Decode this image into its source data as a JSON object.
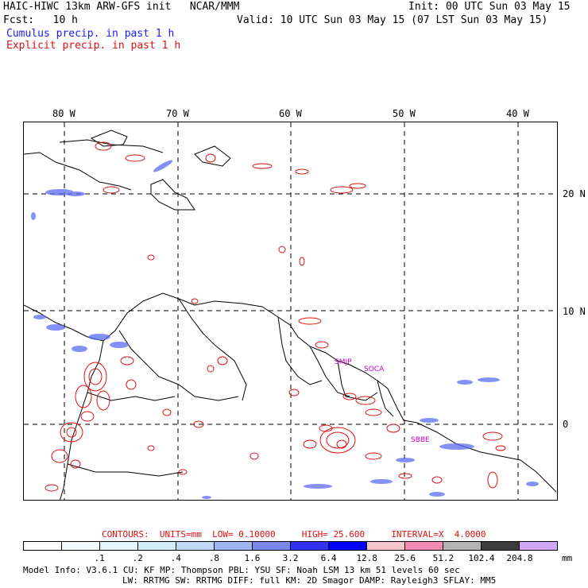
{
  "header": {
    "model_title": "HAIC-HIWC 13km ARW-GFS init",
    "org": "NCAR/MMM",
    "init": "Init: 00 UTC Sun 03 May 15",
    "fcst_label": "Fcst:",
    "fcst_value": "10 h",
    "valid": "Valid: 10 UTC Sun 03 May 15 (07 LST Sun 03 May 15)",
    "legend_cumulus": "Cumulus precip. in past 1 h",
    "legend_explicit": "Explicit precip. in past 1 h"
  },
  "axes": {
    "lon_labels": [
      "80 W",
      "70 W",
      "60 W",
      "50 W",
      "40 W"
    ],
    "lat_labels": [
      "20 N",
      "10 N",
      "0"
    ]
  },
  "stations": [
    "SMJP",
    "SOCA",
    "SBBE"
  ],
  "contour_info": {
    "contours": "CONTOURS:",
    "units": "UNITS=mm",
    "low": "LOW= 0.10000",
    "high": "HIGH= 25.600",
    "interval": "INTERVAL=X  4.0000"
  },
  "colorbar": {
    "colors": [
      "#ffffff",
      "#f2fbfd",
      "#e3f4fb",
      "#d3eef9",
      "#c0d8f6",
      "#9fb4f2",
      "#7a88ee",
      "#3232f0",
      "#0000f8",
      "#f4c6cb",
      "#f28bb1",
      "#b4b4b4",
      "#3c3c3c",
      "#d2a7f5"
    ],
    "labels": [
      ".1",
      ".2",
      ".4",
      ".8",
      "1.6",
      "3.2",
      "6.4",
      "12.8",
      "25.6",
      "51.2",
      "102.4",
      "204.8"
    ],
    "unit": "mm"
  },
  "footer": {
    "line1": [
      "Model Info: V3.6.1",
      "CU: KF",
      "MP: Thompson",
      "PBL: YSU",
      "SF: Noah LSM",
      "13 km",
      "51 levels",
      "60 sec"
    ],
    "line2": [
      "LW: RRTMG",
      "SW: RRTMG",
      "DIFF: full",
      "KM: 2D Smagor",
      "DAMP: Rayleigh3",
      "SFLAY: MM5"
    ]
  }
}
